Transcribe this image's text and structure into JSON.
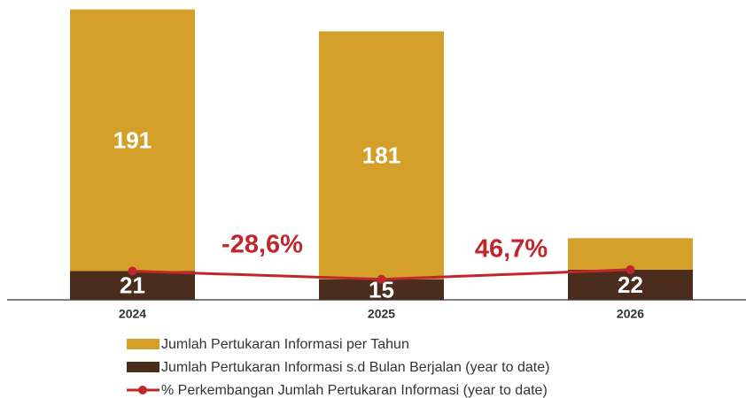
{
  "chart_data": {
    "type": "bar",
    "stacked": true,
    "categories": [
      "2024",
      "2025",
      "2026"
    ],
    "series": [
      {
        "name": "Jumlah Pertukaran Informasi per Tahun",
        "color": "#d4a02a",
        "values": [
          191,
          181,
          23
        ],
        "value_labels": [
          "191",
          "181",
          null
        ]
      },
      {
        "name": "Jumlah Pertukaran Informasi s.d Bulan Berjalan (year to date)",
        "color": "#4a2d1d",
        "values": [
          21,
          15,
          22
        ]
      },
      {
        "name": "% Perkembangan Jumlah Pertukaran Informasi (year to date)",
        "type": "line",
        "color": "#c0272d",
        "values": [
          null,
          -28.6,
          46.7
        ],
        "value_labels": [
          null,
          "-28,6%",
          "46,7%"
        ]
      }
    ],
    "ylim": [
      0,
      215
    ]
  }
}
